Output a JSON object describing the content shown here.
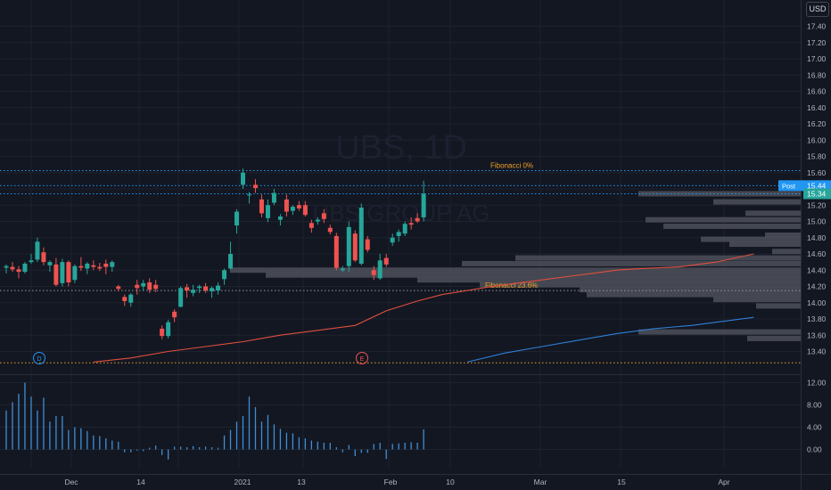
{
  "watermark": {
    "symbol": "UBS, 1D",
    "company": "UBS GROUP AG"
  },
  "currency": "USD",
  "colors": {
    "up": "#26a69a",
    "down": "#ef5350",
    "ma_fast": "#e04f3f",
    "ma_slow": "#2f7fd6",
    "fib": "#f0a024",
    "level": "#2196f3",
    "volume": "#3e8fd6",
    "profile": "#4a4d57",
    "bg": "#131722"
  },
  "chart_data": {
    "type": "candlestick",
    "price_axis": {
      "ylim": [
        13.25,
        17.6
      ],
      "ticks": [
        13.4,
        13.6,
        13.8,
        14.0,
        14.2,
        14.4,
        14.6,
        14.8,
        15.0,
        15.2,
        15.4,
        15.6,
        15.8,
        16.0,
        16.2,
        16.4,
        16.6,
        16.8,
        17.0,
        17.2,
        17.4
      ]
    },
    "volume_axis": {
      "ylim": [
        -2.2,
        13.2
      ],
      "ticks": [
        0.0,
        4.0,
        8.0,
        12.0
      ]
    },
    "time_axis": {
      "labels": [
        "Dec",
        "14",
        "2021",
        "13",
        "Feb",
        "10",
        "Mar",
        "15",
        "Apr"
      ]
    },
    "candles": [
      {
        "o": 14.43,
        "h": 14.47,
        "l": 14.36,
        "c": 14.45
      },
      {
        "o": 14.44,
        "h": 14.5,
        "l": 14.38,
        "c": 14.41
      },
      {
        "o": 14.41,
        "h": 14.45,
        "l": 14.3,
        "c": 14.38
      },
      {
        "o": 14.38,
        "h": 14.5,
        "l": 14.36,
        "c": 14.48
      },
      {
        "o": 14.5,
        "h": 14.6,
        "l": 14.48,
        "c": 14.52
      },
      {
        "o": 14.53,
        "h": 14.8,
        "l": 14.5,
        "c": 14.75
      },
      {
        "o": 14.62,
        "h": 14.68,
        "l": 14.46,
        "c": 14.5
      },
      {
        "o": 14.46,
        "h": 14.52,
        "l": 14.38,
        "c": 14.5
      },
      {
        "o": 14.47,
        "h": 14.55,
        "l": 14.2,
        "c": 14.22
      },
      {
        "o": 14.24,
        "h": 14.54,
        "l": 14.2,
        "c": 14.5
      },
      {
        "o": 14.5,
        "h": 14.52,
        "l": 14.2,
        "c": 14.25
      },
      {
        "o": 14.28,
        "h": 14.47,
        "l": 14.24,
        "c": 14.45
      },
      {
        "o": 14.45,
        "h": 14.56,
        "l": 14.39,
        "c": 14.43
      },
      {
        "o": 14.42,
        "h": 14.5,
        "l": 14.35,
        "c": 14.48
      },
      {
        "o": 14.46,
        "h": 14.52,
        "l": 14.4,
        "c": 14.44
      },
      {
        "o": 14.44,
        "h": 14.49,
        "l": 14.39,
        "c": 14.42
      },
      {
        "o": 14.48,
        "h": 14.53,
        "l": 14.35,
        "c": 14.44
      },
      {
        "o": 14.44,
        "h": 14.52,
        "l": 14.38,
        "c": 14.5
      },
      {
        "o": 14.2,
        "h": 14.22,
        "l": 14.14,
        "c": 14.17
      },
      {
        "o": 14.07,
        "h": 14.1,
        "l": 13.96,
        "c": 14.02
      },
      {
        "o": 14.0,
        "h": 14.12,
        "l": 13.95,
        "c": 14.1
      },
      {
        "o": 14.22,
        "h": 14.28,
        "l": 14.1,
        "c": 14.18
      },
      {
        "o": 14.2,
        "h": 14.28,
        "l": 14.15,
        "c": 14.24
      },
      {
        "o": 14.25,
        "h": 14.3,
        "l": 14.12,
        "c": 14.16
      },
      {
        "o": 14.22,
        "h": 14.28,
        "l": 14.13,
        "c": 14.17
      },
      {
        "o": 13.68,
        "h": 13.72,
        "l": 13.55,
        "c": 13.59
      },
      {
        "o": 13.59,
        "h": 13.79,
        "l": 13.56,
        "c": 13.76
      },
      {
        "o": 13.89,
        "h": 13.92,
        "l": 13.76,
        "c": 13.82
      },
      {
        "o": 13.95,
        "h": 14.2,
        "l": 13.94,
        "c": 14.18
      },
      {
        "o": 14.19,
        "h": 14.23,
        "l": 14.06,
        "c": 14.15
      },
      {
        "o": 14.12,
        "h": 14.22,
        "l": 14.08,
        "c": 14.16
      },
      {
        "o": 14.18,
        "h": 14.22,
        "l": 14.12,
        "c": 14.2
      },
      {
        "o": 14.2,
        "h": 14.24,
        "l": 14.12,
        "c": 14.15
      },
      {
        "o": 14.14,
        "h": 14.2,
        "l": 14.06,
        "c": 14.18
      },
      {
        "o": 14.15,
        "h": 14.25,
        "l": 14.1,
        "c": 14.21
      },
      {
        "o": 14.29,
        "h": 14.42,
        "l": 14.22,
        "c": 14.4
      },
      {
        "o": 14.42,
        "h": 14.75,
        "l": 14.41,
        "c": 14.6
      },
      {
        "o": 14.95,
        "h": 15.15,
        "l": 14.85,
        "c": 15.12
      },
      {
        "o": 15.45,
        "h": 15.65,
        "l": 15.4,
        "c": 15.6
      },
      {
        "o": 15.32,
        "h": 15.36,
        "l": 15.22,
        "c": 15.33
      },
      {
        "o": 15.45,
        "h": 15.52,
        "l": 15.35,
        "c": 15.41
      },
      {
        "o": 15.27,
        "h": 15.33,
        "l": 15.05,
        "c": 15.1
      },
      {
        "o": 15.04,
        "h": 15.27,
        "l": 14.99,
        "c": 15.2
      },
      {
        "o": 15.23,
        "h": 15.4,
        "l": 15.2,
        "c": 15.35
      },
      {
        "o": 15.02,
        "h": 15.09,
        "l": 14.95,
        "c": 15.06
      },
      {
        "o": 15.27,
        "h": 15.33,
        "l": 15.06,
        "c": 15.12
      },
      {
        "o": 15.13,
        "h": 15.2,
        "l": 15.08,
        "c": 15.18
      },
      {
        "o": 15.2,
        "h": 15.25,
        "l": 15.13,
        "c": 15.16
      },
      {
        "o": 15.2,
        "h": 15.25,
        "l": 15.06,
        "c": 15.08
      },
      {
        "o": 14.98,
        "h": 15.02,
        "l": 14.86,
        "c": 14.92
      },
      {
        "o": 15.0,
        "h": 15.05,
        "l": 14.96,
        "c": 15.02
      },
      {
        "o": 15.1,
        "h": 15.15,
        "l": 14.98,
        "c": 15.03
      },
      {
        "o": 14.92,
        "h": 14.96,
        "l": 14.84,
        "c": 14.87
      },
      {
        "o": 14.82,
        "h": 14.86,
        "l": 14.4,
        "c": 14.43
      },
      {
        "o": 14.4,
        "h": 14.45,
        "l": 14.38,
        "c": 14.42
      },
      {
        "o": 14.45,
        "h": 15.0,
        "l": 14.38,
        "c": 14.93
      },
      {
        "o": 14.85,
        "h": 14.89,
        "l": 14.5,
        "c": 14.52
      },
      {
        "o": 14.48,
        "h": 15.22,
        "l": 14.46,
        "c": 15.17
      },
      {
        "o": 14.78,
        "h": 14.82,
        "l": 14.62,
        "c": 14.65
      },
      {
        "o": 14.4,
        "h": 14.45,
        "l": 14.28,
        "c": 14.34
      },
      {
        "o": 14.3,
        "h": 14.6,
        "l": 14.28,
        "c": 14.52
      },
      {
        "o": 14.55,
        "h": 14.6,
        "l": 14.44,
        "c": 14.47
      },
      {
        "o": 14.74,
        "h": 14.85,
        "l": 14.7,
        "c": 14.8
      },
      {
        "o": 14.82,
        "h": 14.9,
        "l": 14.75,
        "c": 14.87
      },
      {
        "o": 14.85,
        "h": 15.0,
        "l": 14.82,
        "c": 14.97
      },
      {
        "o": 14.98,
        "h": 15.05,
        "l": 14.9,
        "c": 14.96
      },
      {
        "o": 15.04,
        "h": 15.1,
        "l": 14.98,
        "c": 15.0
      },
      {
        "o": 15.05,
        "h": 15.5,
        "l": 15.0,
        "c": 15.34
      }
    ],
    "volume": [
      7,
      8.5,
      10,
      12,
      9.5,
      7,
      9.3,
      5,
      6,
      6,
      3.5,
      4,
      3.8,
      3.3,
      2.5,
      2.4,
      2,
      1.6,
      1.4,
      -0.5,
      -0.5,
      -0.2,
      -0.3,
      0.3,
      0.7,
      -1,
      -1.8,
      0.5,
      0.5,
      0.4,
      0.6,
      0.4,
      0.5,
      0.4,
      0.3,
      2.5,
      3.5,
      5,
      6,
      9.5,
      7.6,
      5,
      6.2,
      4.5,
      3.7,
      3,
      2.9,
      2.2,
      2,
      1.6,
      1.4,
      1.2,
      1.2,
      0.4,
      -0.5,
      0.8,
      -1.2,
      -0.6,
      -0.6,
      1,
      1.2,
      -1.7,
      1,
      1.1,
      1.2,
      1.3,
      1.2,
      3.6
    ],
    "ma_fast": [
      [
        14,
        13.27
      ],
      [
        20,
        13.32
      ],
      [
        26,
        13.4
      ],
      [
        32,
        13.46
      ],
      [
        38,
        13.52
      ],
      [
        44,
        13.6
      ],
      [
        50,
        13.66
      ],
      [
        56,
        13.72
      ],
      [
        61,
        13.9
      ],
      [
        66,
        14.02
      ],
      [
        70,
        14.1
      ],
      [
        74,
        14.15
      ],
      [
        78,
        14.2
      ],
      [
        82,
        14.24
      ],
      [
        86,
        14.28
      ],
      [
        90,
        14.32
      ],
      [
        94,
        14.36
      ],
      [
        98,
        14.4
      ],
      [
        102,
        14.42
      ],
      [
        108,
        14.44
      ],
      [
        114,
        14.5
      ],
      [
        120,
        14.6
      ]
    ],
    "ma_slow": [
      [
        74,
        13.27
      ],
      [
        80,
        13.38
      ],
      [
        86,
        13.46
      ],
      [
        92,
        13.54
      ],
      [
        98,
        13.62
      ],
      [
        104,
        13.68
      ],
      [
        110,
        13.72
      ],
      [
        116,
        13.78
      ],
      [
        120,
        13.82
      ]
    ],
    "fibonacci": [
      {
        "label": "Fibonacci 0%",
        "price": 15.625
      },
      {
        "label": "Fibonacci 23.6%",
        "price": 14.15
      }
    ],
    "horizontal_lines": [
      {
        "label": "Post",
        "price": 15.44
      },
      {
        "price": 15.34
      },
      {
        "price": 13.26
      }
    ],
    "price_labels": [
      {
        "text": "Post",
        "value": "15.44"
      },
      {
        "value": "15.34"
      }
    ],
    "volume_profile": [
      [
        15.34,
        182
      ],
      [
        15.24,
        98
      ],
      [
        15.1,
        62
      ],
      [
        15.02,
        174
      ],
      [
        14.94,
        154
      ],
      [
        14.83,
        40
      ],
      [
        14.78,
        112
      ],
      [
        14.72,
        80
      ],
      [
        14.63,
        32
      ],
      [
        14.55,
        320
      ],
      [
        14.48,
        380
      ],
      [
        14.4,
        640
      ],
      [
        14.34,
        600
      ],
      [
        14.28,
        430
      ],
      [
        14.22,
        360
      ],
      [
        14.16,
        248
      ],
      [
        14.1,
        240
      ],
      [
        14.04,
        98
      ],
      [
        13.96,
        50
      ],
      [
        13.64,
        182
      ],
      [
        13.56,
        60
      ]
    ],
    "events": [
      {
        "label": "D"
      },
      {
        "label": "E"
      }
    ],
    "grid": true
  }
}
